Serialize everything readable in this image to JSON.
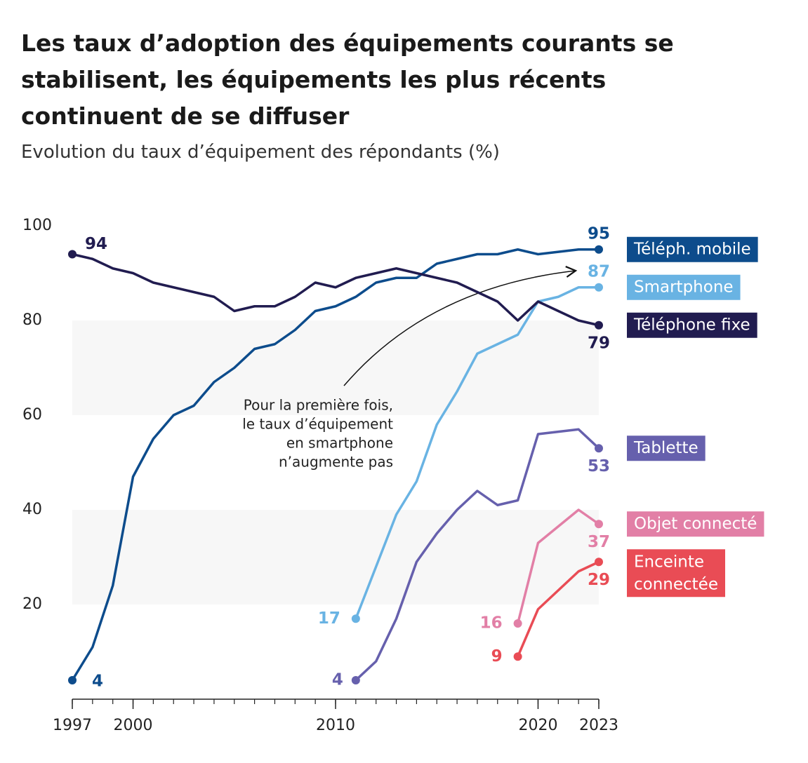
{
  "chart_data": {
    "type": "line",
    "title": "Les taux d’adoption des équipements courants se stabilisent, les équipements les plus récents continuent de se diffuser",
    "subtitle": "Evolution du taux d’équipement des répondants (%)",
    "annotation": [
      "Pour la première fois,",
      "le taux d’équipement",
      "en smartphone",
      "n’augmente pas"
    ],
    "x": [
      1997,
      1998,
      1999,
      2000,
      2001,
      2002,
      2003,
      2004,
      2005,
      2006,
      2007,
      2008,
      2009,
      2010,
      2011,
      2012,
      2013,
      2014,
      2015,
      2016,
      2017,
      2018,
      2019,
      2020,
      2021,
      2022,
      2023
    ],
    "xlim": [
      1997,
      2023
    ],
    "xticks": [
      1997,
      2000,
      2010,
      2020,
      2023
    ],
    "ylim": [
      0,
      100
    ],
    "yticks": [
      20,
      40,
      60,
      80,
      100
    ],
    "series": [
      {
        "name": "Téléph. mobile",
        "color": "#0d4c8c",
        "values": [
          4,
          11,
          24,
          47,
          55,
          60,
          62,
          67,
          70,
          74,
          75,
          78,
          82,
          83,
          85,
          88,
          89,
          89,
          92,
          93,
          94,
          94,
          95,
          94,
          94.5,
          95,
          95
        ]
      },
      {
        "name": "Smartphone",
        "color": "#69b3e3",
        "values": [
          null,
          null,
          null,
          null,
          null,
          null,
          null,
          null,
          null,
          null,
          null,
          null,
          null,
          null,
          17,
          28,
          39,
          46,
          58,
          65,
          73,
          75,
          77,
          84,
          85,
          87,
          87
        ]
      },
      {
        "name": "Téléphone fixe",
        "color": "#211c50",
        "values": [
          94,
          93,
          91,
          90,
          88,
          87,
          86,
          85,
          82,
          83,
          83,
          85,
          88,
          87,
          89,
          90,
          91,
          90,
          89,
          88,
          86,
          84,
          80,
          84,
          82,
          80,
          79
        ]
      },
      {
        "name": "Tablette",
        "color": "#6660ad",
        "values": [
          null,
          null,
          null,
          null,
          null,
          null,
          null,
          null,
          null,
          null,
          null,
          null,
          null,
          null,
          4,
          8,
          17,
          29,
          35,
          40,
          44,
          41,
          42,
          56,
          56.5,
          57,
          53
        ]
      },
      {
        "name": "Objet connecté",
        "color": "#e27fa6",
        "values": [
          null,
          null,
          null,
          null,
          null,
          null,
          null,
          null,
          null,
          null,
          null,
          null,
          null,
          null,
          null,
          null,
          null,
          null,
          null,
          null,
          null,
          null,
          16,
          33,
          36.5,
          40,
          37
        ]
      },
      {
        "name": "Enceinte connectée",
        "color": "#e94c55",
        "values": [
          null,
          null,
          null,
          null,
          null,
          null,
          null,
          null,
          null,
          null,
          null,
          null,
          null,
          null,
          null,
          null,
          null,
          null,
          null,
          null,
          null,
          null,
          9,
          19,
          23,
          27,
          29
        ]
      }
    ]
  }
}
